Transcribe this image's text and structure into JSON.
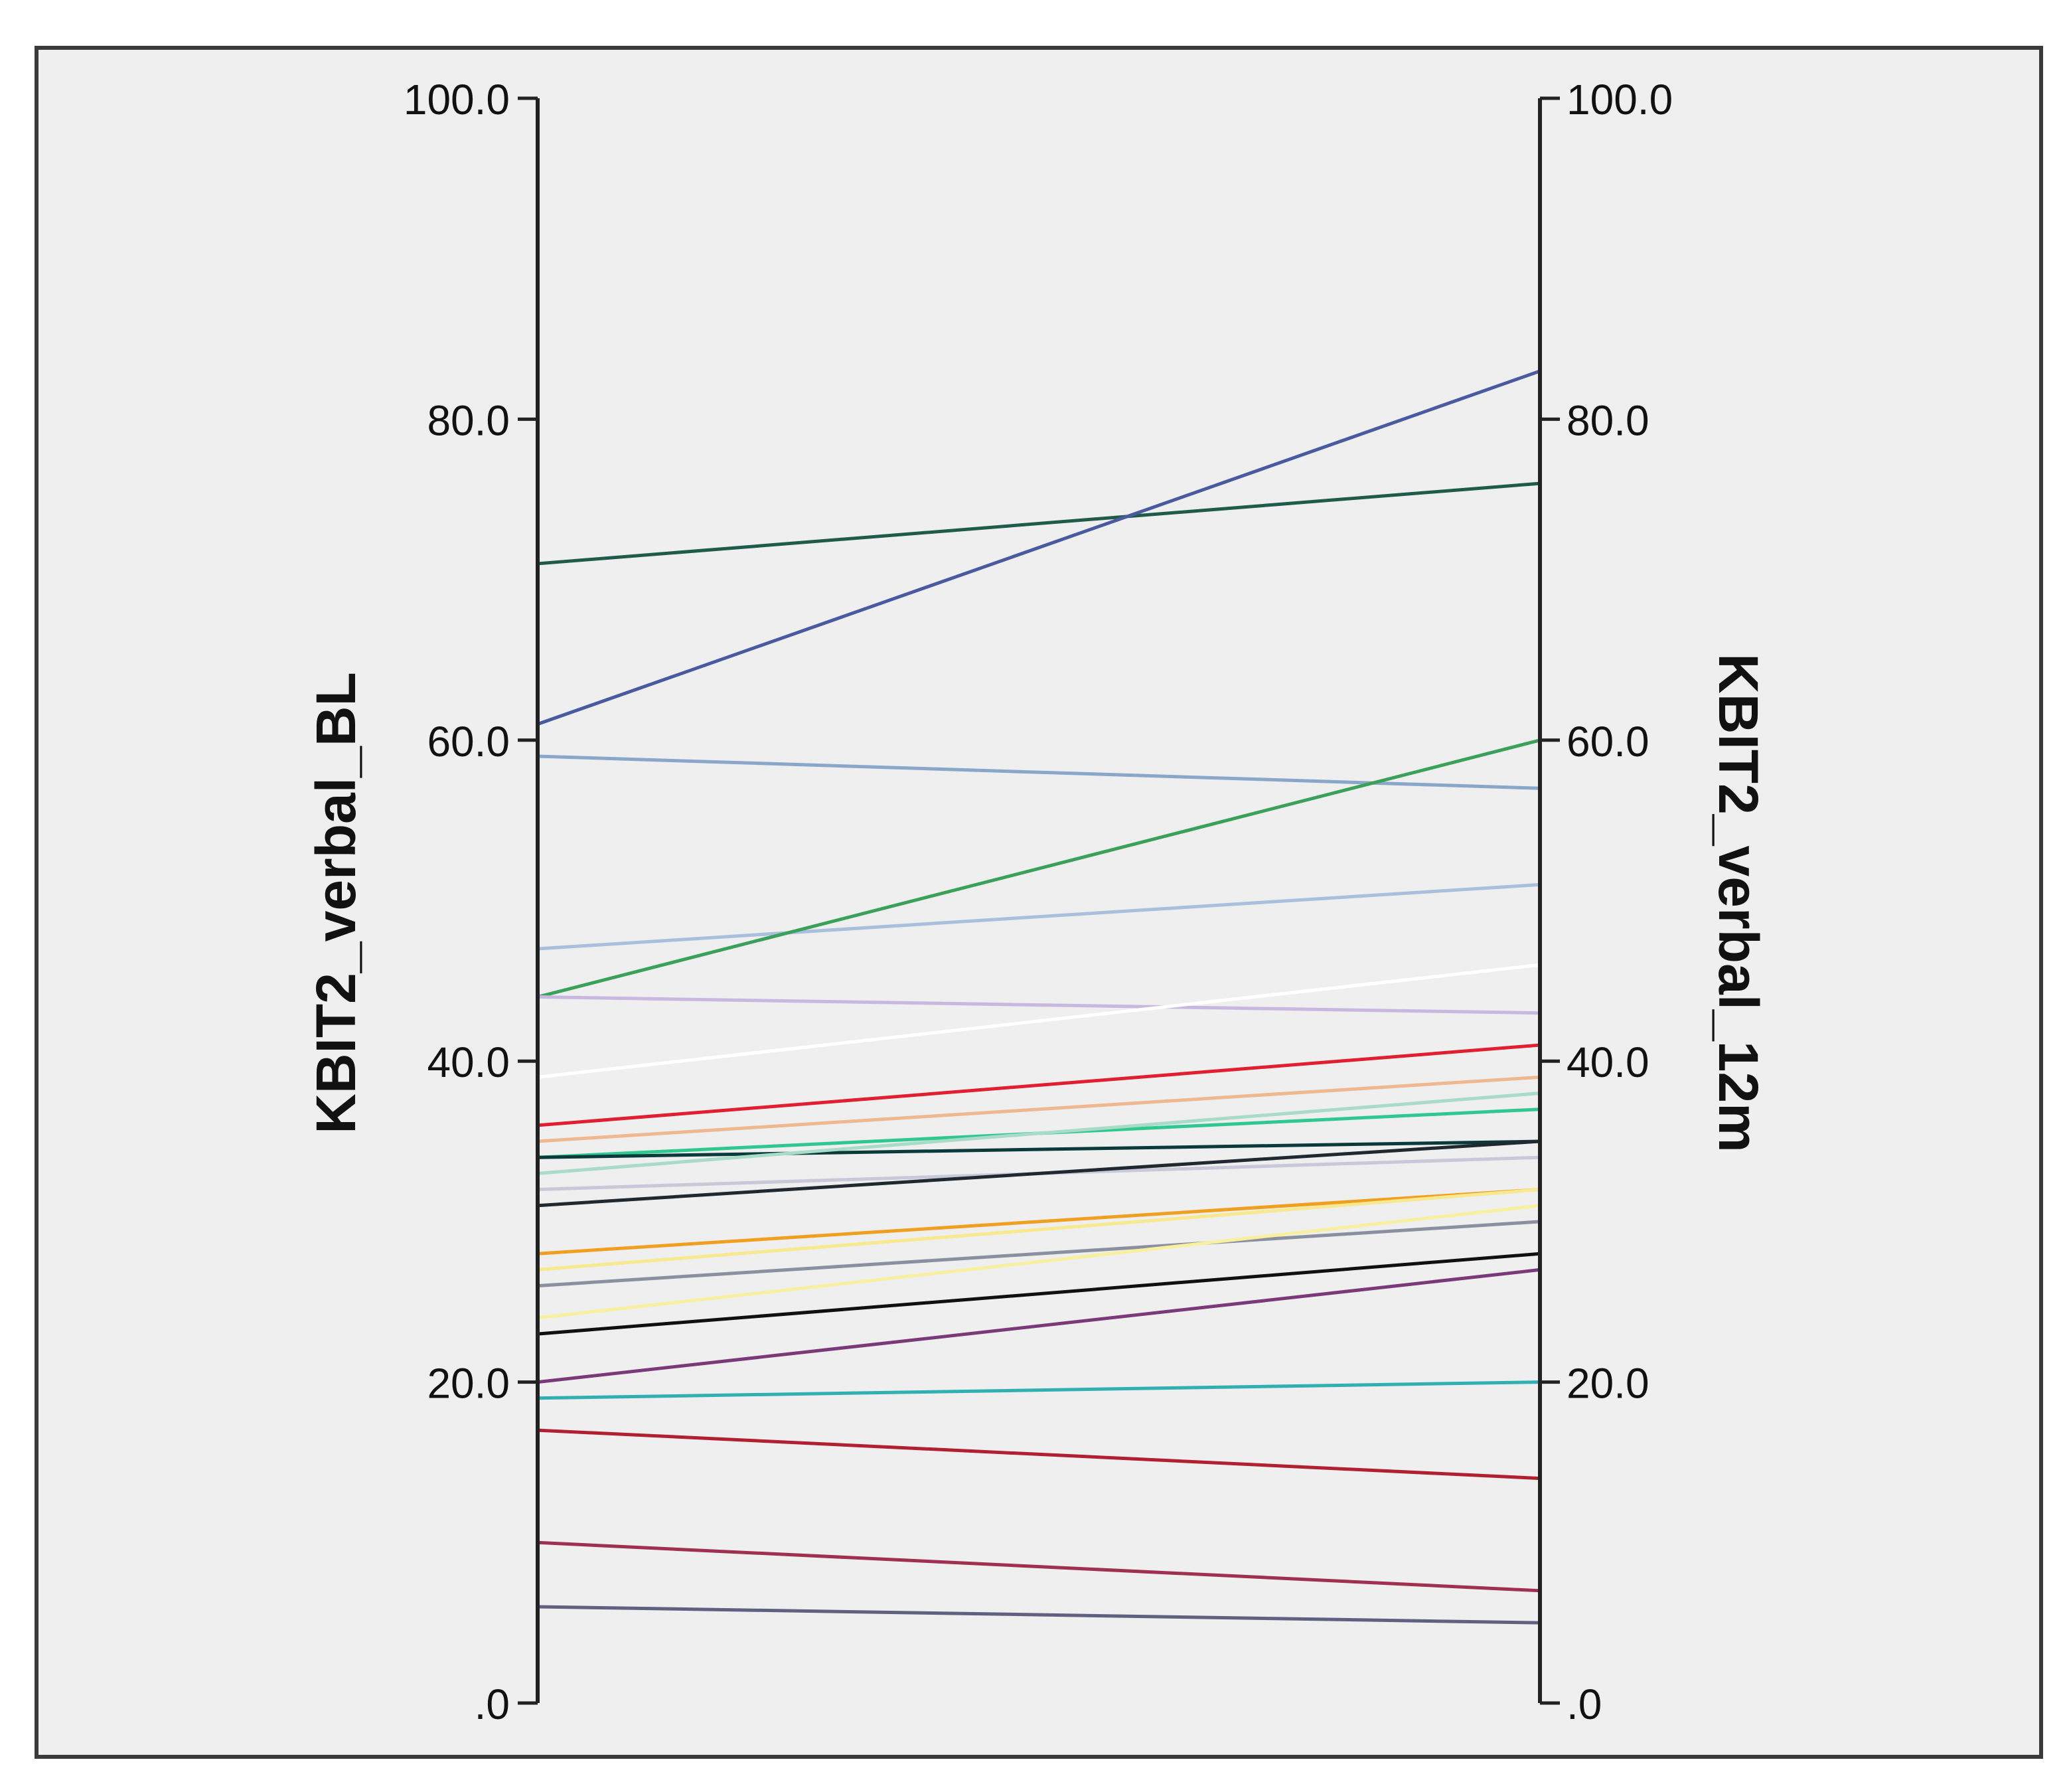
{
  "chart_data": {
    "type": "parallel-coordinates",
    "axes": [
      {
        "name": "KBIT2_verbal_BL",
        "position": "left"
      },
      {
        "name": "KBIT2_verbal_12m",
        "position": "right"
      }
    ],
    "ylim": [
      0,
      100
    ],
    "ticks": [
      0,
      20,
      40,
      60,
      80,
      100
    ],
    "tick_labels": [
      ".0",
      "20.0",
      "40.0",
      "60.0",
      "80.0",
      "100.0"
    ],
    "grid": false,
    "legend": "none",
    "background": "#efefef",
    "frame_color": "#3a3a3a",
    "series": [
      {
        "bl": 71,
        "m12": 76,
        "color": "#1f5a4a"
      },
      {
        "bl": 61,
        "m12": 83,
        "color": "#4a5aa0"
      },
      {
        "bl": 59,
        "m12": 57,
        "color": "#8aa6c8"
      },
      {
        "bl": 47,
        "m12": 51,
        "color": "#a8c0dc"
      },
      {
        "bl": 44,
        "m12": 60,
        "color": "#3aa05a"
      },
      {
        "bl": 44,
        "m12": 43,
        "color": "#c8b8e0"
      },
      {
        "bl": 39,
        "m12": 46,
        "color": "#ffffff"
      },
      {
        "bl": 36,
        "m12": 41,
        "color": "#e02030"
      },
      {
        "bl": 35,
        "m12": 39,
        "color": "#f0b890"
      },
      {
        "bl": 34,
        "m12": 37,
        "color": "#30c890"
      },
      {
        "bl": 34,
        "m12": 35,
        "color": "#0a3a3a"
      },
      {
        "bl": 33,
        "m12": 38,
        "color": "#a8dcc8"
      },
      {
        "bl": 32,
        "m12": 34,
        "color": "#c8c8d8"
      },
      {
        "bl": 31,
        "m12": 35,
        "color": "#202830"
      },
      {
        "bl": 28,
        "m12": 32,
        "color": "#f0a020"
      },
      {
        "bl": 27,
        "m12": 32,
        "color": "#f8e890"
      },
      {
        "bl": 26,
        "m12": 30,
        "color": "#8a90a0"
      },
      {
        "bl": 24,
        "m12": 31,
        "color": "#f8f0a0"
      },
      {
        "bl": 23,
        "m12": 28,
        "color": "#101010"
      },
      {
        "bl": 20,
        "m12": 27,
        "color": "#7a3a7a"
      },
      {
        "bl": 19,
        "m12": 20,
        "color": "#30b0b0"
      },
      {
        "bl": 17,
        "m12": 14,
        "color": "#b02030"
      },
      {
        "bl": 10,
        "m12": 7,
        "color": "#a03050"
      },
      {
        "bl": 6,
        "m12": 5,
        "color": "#606080"
      }
    ]
  }
}
